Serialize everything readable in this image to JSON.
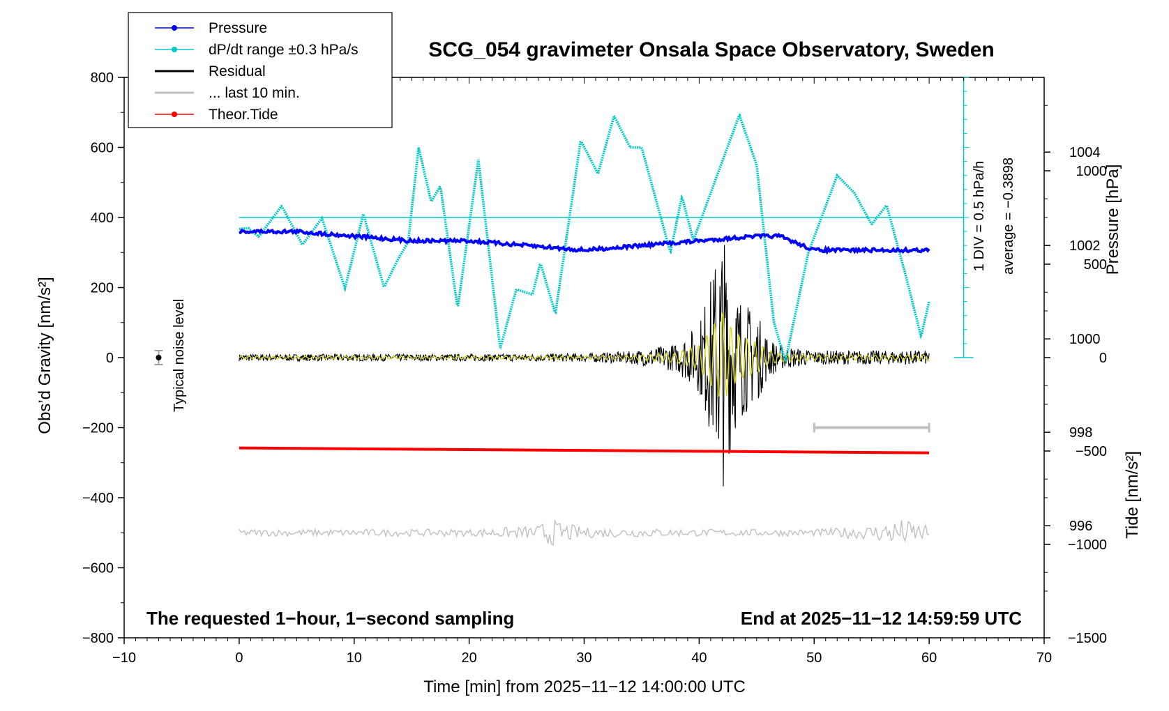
{
  "chart_data": {
    "type": "line",
    "title": "SCG_054 gravimeter Onsala Space Observatory, Sweden",
    "xlabel": "Time [min] from 2025−11−12 14:00:00 UTC",
    "ylabel_left": "Obs’d Gravity [nm/s²]",
    "ylabel_pressure": "Pressure [hPa]",
    "ylabel_tide": "Tide [nm/s²]",
    "xlim": [
      -10,
      70
    ],
    "ylim_gravity": [
      -800,
      800
    ],
    "ylim_pressure": [
      993.6,
      1005.6
    ],
    "ylim_tide": [
      -1500,
      1500
    ],
    "x_ticks": [
      "−10",
      "0",
      "10",
      "20",
      "30",
      "40",
      "50",
      "60",
      "70"
    ],
    "gravity_ticks": [
      "800",
      "600",
      "400",
      "200",
      "0",
      "−200",
      "−400",
      "−600",
      "−800"
    ],
    "pressure_ticks": [
      "1004",
      "1002",
      "1000",
      "998",
      "996"
    ],
    "tide_ticks": [
      "1000",
      "500",
      "0",
      "−500",
      "−1000",
      "−1500"
    ],
    "grid": false,
    "legend_position": "top-left",
    "legend": [
      {
        "label": "Pressure",
        "color": "#0000ff",
        "marker": true
      },
      {
        "label": "dP/dt range ±0.3 hPa/s",
        "color": "#00c8c8",
        "marker": true
      },
      {
        "label": "Residual",
        "color": "#000000",
        "marker": false
      },
      {
        "label": "... last 10 min.",
        "color": "#c0c0c0",
        "marker": false
      },
      {
        "label": "Theor.Tide",
        "color": "#ff0000",
        "marker": true
      }
    ],
    "annotations": {
      "scale_div": "1 DIV = 0.5 hPa/h",
      "average": "average = −0.3898",
      "noise_label": "Typical noise level",
      "bottom_left": "The requested 1−hour, 1−second sampling",
      "bottom_right": "End at 2025−11−12 14:59:59 UTC"
    },
    "series": [
      {
        "name": "Pressure",
        "unit": "hPa",
        "color": "#0000ff",
        "x": [
          0,
          5,
          10,
          15,
          20,
          25,
          30,
          35,
          40,
          45,
          47,
          50,
          55,
          60
        ],
        "values": [
          1002.3,
          1002.3,
          1002.2,
          1002.1,
          1002.1,
          1002.0,
          1001.9,
          1002.0,
          1002.1,
          1002.2,
          1002.2,
          1001.9,
          1001.9,
          1001.9
        ]
      },
      {
        "name": "dP/dt range ±0.3 hPa/s",
        "unit": "nm/s²",
        "color": "#00c8c8",
        "x": [
          0,
          0.8,
          1.7,
          3.7,
          5.5,
          7.2,
          9.2,
          10.8,
          12.6,
          13.8,
          14.7,
          15.6,
          16.7,
          17.5,
          19.0,
          20.8,
          22.7,
          24.1,
          25.5,
          26.2,
          27.5,
          29.7,
          31.2,
          32.6,
          34.0,
          35.0,
          37.5,
          38.5,
          39.5,
          41.0,
          43.5,
          45.0,
          46.5,
          47.5,
          49.5,
          52.0,
          53.5,
          55.0,
          56.3,
          58.0,
          59.3,
          60.0
        ],
        "values": [
          367,
          370,
          345,
          433,
          322,
          398,
          198,
          410,
          200,
          280,
          330,
          600,
          445,
          490,
          140,
          565,
          25,
          195,
          180,
          270,
          125,
          620,
          525,
          690,
          600,
          600,
          300,
          460,
          335,
          470,
          693,
          550,
          100,
          -10,
          300,
          520,
          470,
          380,
          435,
          230,
          60,
          160
        ]
      },
      {
        "name": "Residual",
        "unit": "nm/s²",
        "color": "#000000",
        "x": [
          0,
          10,
          20,
          30,
          34,
          38,
          40,
          41,
          41.7,
          42,
          42.3,
          43,
          44,
          45,
          46,
          47,
          50,
          55,
          60
        ],
        "amplitude": [
          10,
          10,
          10,
          12,
          18,
          40,
          100,
          230,
          330,
          390,
          330,
          220,
          160,
          130,
          60,
          35,
          20,
          20,
          20
        ]
      },
      {
        "name": "... last 10 min.",
        "unit": "nm/s²",
        "color": "#c0c0c0",
        "offset": -500,
        "x": [
          0,
          10,
          20,
          26,
          26.8,
          30,
          40,
          50,
          55,
          57.5,
          60
        ],
        "amplitude": [
          10,
          10,
          10,
          20,
          40,
          15,
          10,
          10,
          20,
          40,
          20
        ]
      },
      {
        "name": "Theor.Tide",
        "unit": "nm/s²",
        "color": "#ff0000",
        "x": [
          0,
          60
        ],
        "values": [
          -258,
          -272
        ]
      }
    ],
    "noise_marker": {
      "x": -7,
      "value": 0,
      "error": 20
    }
  }
}
